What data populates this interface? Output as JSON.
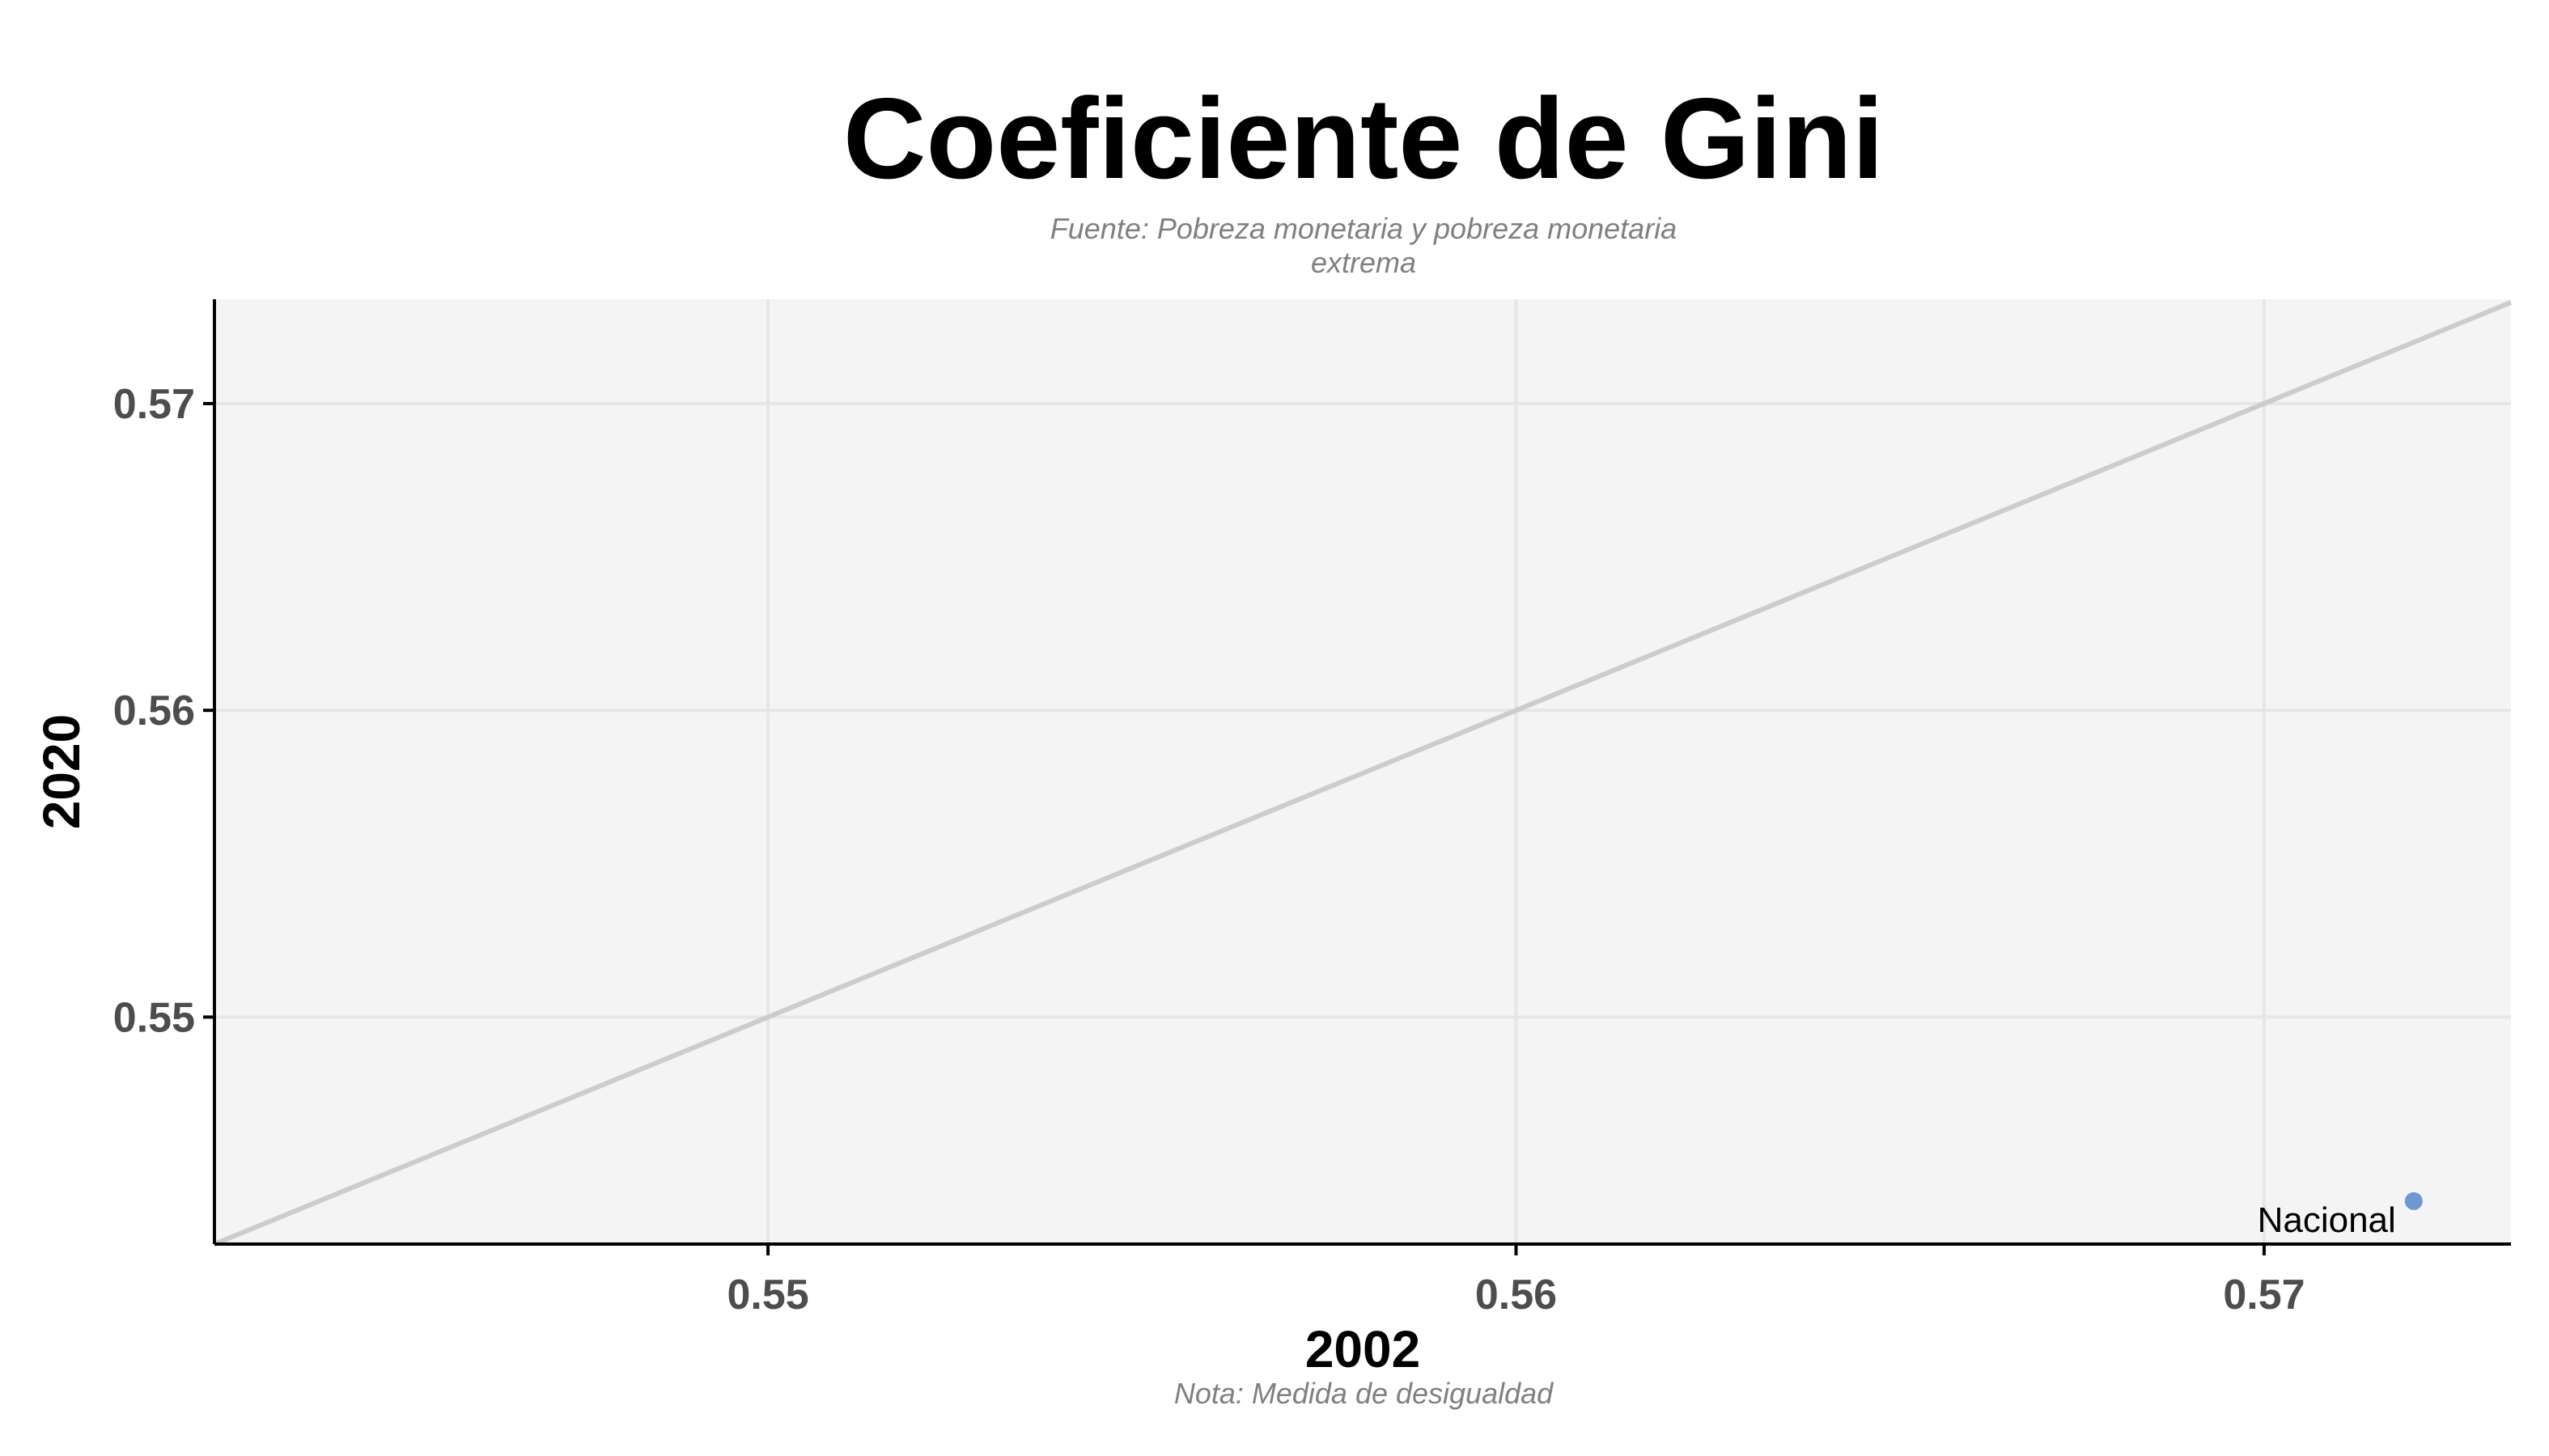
{
  "chart_data": {
    "type": "scatter",
    "title": "Coeficiente de Gini",
    "subtitle_line1": "Fuente: Pobreza monetaria y pobreza monetaria",
    "subtitle_line2": "extrema",
    "caption": "Nota: Medida de desigualdad",
    "xlabel": "2002",
    "ylabel": "2020",
    "xlim": [
      0.5426,
      0.5733
    ],
    "ylim": [
      0.5426,
      0.5734
    ],
    "x_ticks": [
      0.55,
      0.56,
      0.57
    ],
    "y_ticks": [
      0.55,
      0.56,
      0.57
    ],
    "x_tick_labels": [
      "0.55",
      "0.56",
      "0.57"
    ],
    "y_tick_labels": [
      "0.55",
      "0.56",
      "0.57"
    ],
    "grid": true,
    "reference_line": "y = x",
    "points": [
      {
        "label": "Nacional",
        "x": 0.572,
        "y": 0.544
      }
    ],
    "colors": {
      "panel_background": "#f4f4f4",
      "grid": "#e6e6e6",
      "reference_line": "#cccccc",
      "point": "#6f98d1",
      "axis": "#000000",
      "tick_label": "#4d4d4d"
    }
  }
}
